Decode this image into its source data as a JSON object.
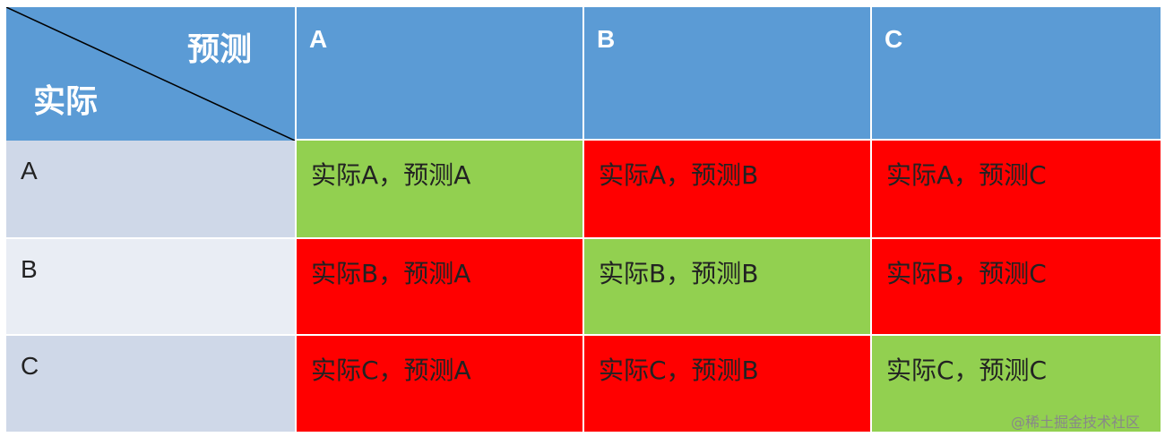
{
  "corner": {
    "column_label": "预测",
    "row_label": "实际"
  },
  "columns": [
    "A",
    "B",
    "C"
  ],
  "rows": [
    {
      "label": "A",
      "cells": [
        "实际A，预测A",
        "实际A，预测B",
        "实际A，预测C"
      ]
    },
    {
      "label": "B",
      "cells": [
        "实际B，预测A",
        "实际B，预测B",
        "实际B，预测C"
      ]
    },
    {
      "label": "C",
      "cells": [
        "实际C，预测A",
        "实际C，预测B",
        "实际C，预测C"
      ]
    }
  ],
  "watermark": "@稀土掘金技术社区"
}
